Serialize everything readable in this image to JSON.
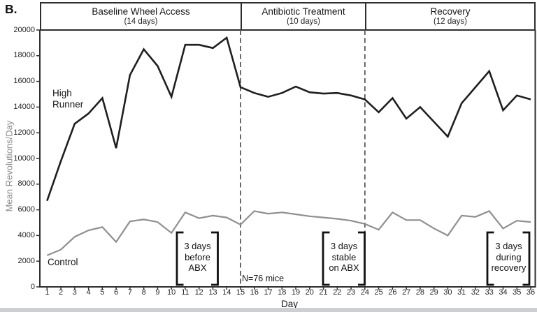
{
  "panel_label": "B.",
  "regions": [
    {
      "title": "Baseline Wheel Access",
      "subtitle": "(14 days)"
    },
    {
      "title": "Antibiotic Treatment",
      "subtitle": "(10 days)"
    },
    {
      "title": "Recovery",
      "subtitle": "(12 days)"
    }
  ],
  "axes": {
    "y_title": "Mean Revolutions/Day",
    "x_title": "Day"
  },
  "series_labels": {
    "high_runner": "High Runner",
    "control": "Control"
  },
  "annotations": {
    "sample_size": "N=76 mice",
    "brackets": [
      {
        "lines": [
          "3 days",
          "before",
          "ABX"
        ]
      },
      {
        "lines": [
          "3 days",
          "stable",
          "on ABX"
        ]
      },
      {
        "lines": [
          "3 days",
          "during",
          "recovery"
        ]
      }
    ]
  },
  "colors": {
    "frame": "#2e2e2e",
    "dashed_line": "#5a5a5a",
    "high_runner_line": "#1f1f1f",
    "control_line": "#8f8f8f",
    "bracket": "#111111"
  },
  "chart_data": {
    "type": "line",
    "title": "",
    "xlabel": "Day",
    "ylabel": "Mean Revolutions/Day",
    "ylim": [
      0,
      20000
    ],
    "y_ticks": [
      0,
      2000,
      4000,
      6000,
      8000,
      10000,
      12000,
      14000,
      16000,
      18000,
      20000
    ],
    "x": [
      1,
      2,
      3,
      4,
      5,
      6,
      7,
      8,
      9,
      10,
      11,
      12,
      13,
      14,
      15,
      16,
      17,
      18,
      19,
      20,
      21,
      22,
      23,
      24,
      25,
      26,
      27,
      28,
      29,
      30,
      31,
      32,
      33,
      34,
      35,
      36
    ],
    "grid": false,
    "legend_position": "inline-labels",
    "phases": [
      {
        "label": "Baseline Wheel Access",
        "days": "1-14"
      },
      {
        "label": "Antibiotic Treatment",
        "days": "15-24"
      },
      {
        "label": "Recovery",
        "days": "25-36"
      }
    ],
    "boundary_days": [
      15,
      24
    ],
    "series": [
      {
        "name": "High Runner",
        "values": [
          6700,
          9800,
          12700,
          13500,
          14700,
          10800,
          16500,
          18500,
          17200,
          14800,
          18850,
          18850,
          18600,
          19400,
          15550,
          15100,
          14800,
          15100,
          15600,
          15150,
          15050,
          15100,
          14900,
          14600,
          13600,
          14700,
          13100,
          14000,
          12850,
          11700,
          14300,
          15550,
          16800,
          13750,
          14900,
          14600
        ]
      },
      {
        "name": "Control",
        "values": [
          2450,
          2900,
          3900,
          4400,
          4650,
          3500,
          5100,
          5250,
          5050,
          4200,
          5800,
          5350,
          5550,
          5400,
          4850,
          5900,
          5700,
          5800,
          5650,
          5500,
          5400,
          5300,
          5150,
          4900,
          4450,
          5800,
          5200,
          5200,
          4550,
          4000,
          5550,
          5450,
          5900,
          4550,
          5150,
          5050
        ]
      }
    ]
  }
}
